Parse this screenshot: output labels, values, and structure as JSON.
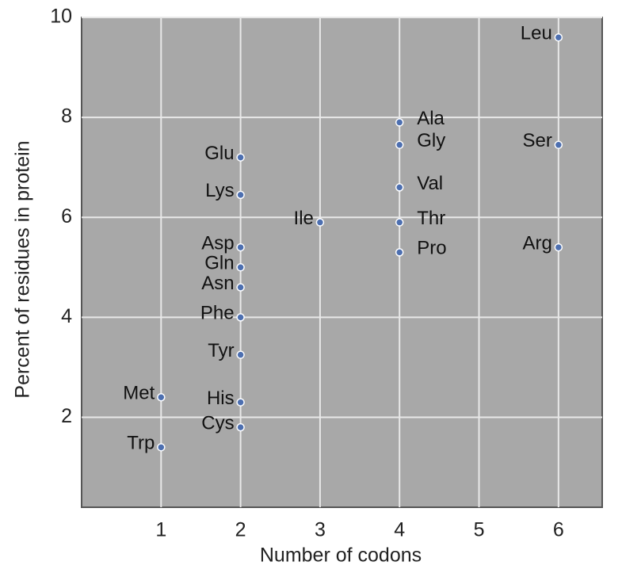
{
  "chart_data": {
    "type": "scatter",
    "x_label": "Number of codons",
    "y_label": "Percent of residues in protein",
    "labels": [
      "Leu",
      "Ala",
      "Gly",
      "Ser",
      "Glu",
      "Val",
      "Lys",
      "Ile",
      "Thr",
      "Pro",
      "Arg",
      "Asp",
      "Gln",
      "Asn",
      "Phe",
      "Tyr",
      "Met",
      "His",
      "Cys",
      "Trp"
    ],
    "x": [
      6,
      4,
      4,
      6,
      2,
      4,
      2,
      3,
      4,
      4,
      6,
      2,
      2,
      2,
      2,
      2,
      1,
      2,
      2,
      1
    ],
    "y": [
      9.6,
      7.9,
      7.45,
      7.45,
      7.2,
      6.6,
      6.45,
      5.9,
      5.9,
      5.3,
      5.4,
      5.4,
      5.0,
      4.6,
      4.0,
      3.25,
      2.4,
      2.3,
      1.8,
      1.4
    ],
    "color": "#4d6fb0",
    "xlim": [
      0,
      6.55
    ],
    "ylim": [
      0.2,
      10
    ],
    "xticks": [
      1,
      2,
      3,
      4,
      5,
      6
    ],
    "yticks": [
      2,
      4,
      6,
      8,
      10
    ],
    "grid": true
  }
}
